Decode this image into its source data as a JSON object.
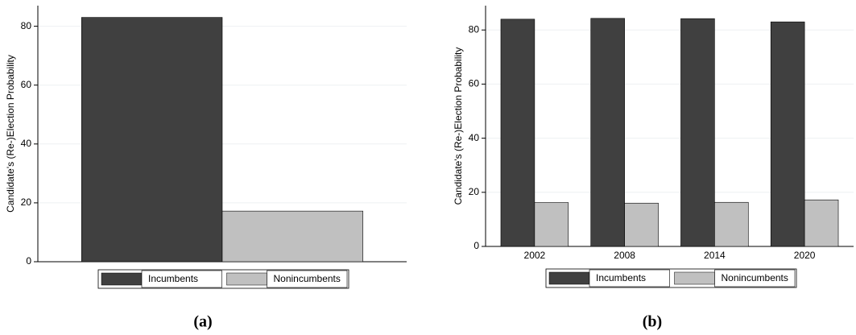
{
  "chart_data": [
    {
      "type": "bar",
      "caption": "(a)",
      "y_label": "Candidate's (Re-)Election Probability",
      "categories": [
        null
      ],
      "series": [
        {
          "name": "Incumbents",
          "color": "#404040",
          "values": [
            83
          ]
        },
        {
          "name": "Nonincumbents",
          "color": "#c0c0c0",
          "values": [
            17.2
          ]
        }
      ],
      "ylim": [
        0,
        87
      ],
      "yticks": [
        0,
        20,
        40,
        60,
        80
      ],
      "grid": true
    },
    {
      "type": "bar",
      "caption": "(b)",
      "y_label": "Candidate's (Re-)Election Probability",
      "categories": [
        "2002",
        "2008",
        "2014",
        "2020"
      ],
      "series": [
        {
          "name": "Incumbents",
          "color": "#404040",
          "values": [
            84,
            84.3,
            84.2,
            83
          ]
        },
        {
          "name": "Nonincumbents",
          "color": "#c0c0c0",
          "values": [
            16.2,
            16,
            16.3,
            17.2
          ]
        }
      ],
      "ylim": [
        0,
        89
      ],
      "yticks": [
        0,
        20,
        40,
        60,
        80
      ],
      "grid": true
    }
  ]
}
